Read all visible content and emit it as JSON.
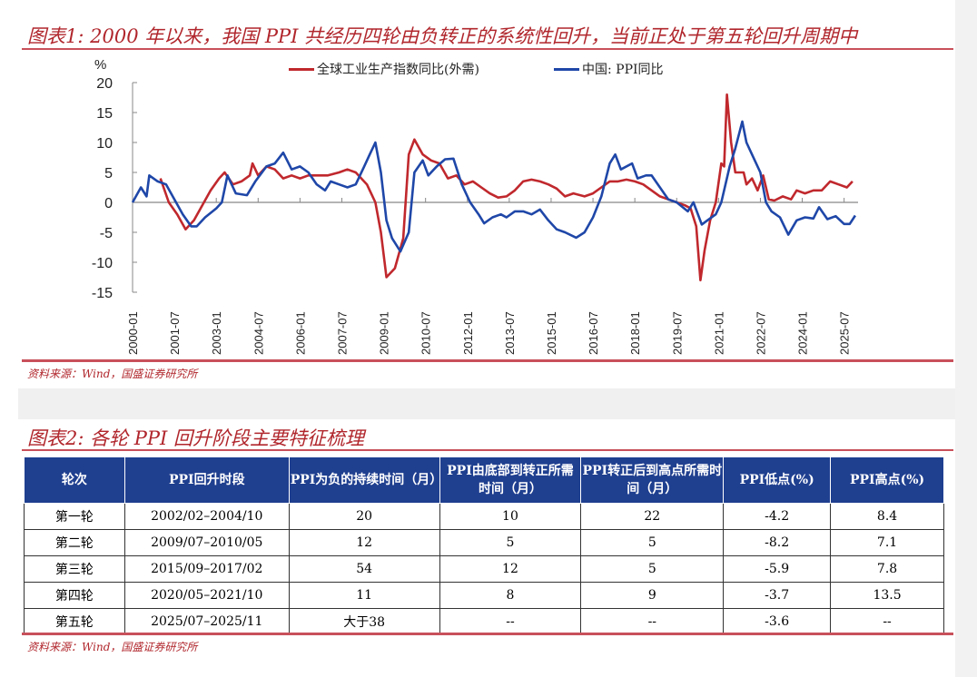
{
  "figure1": {
    "title": "图表1: 2000 年以来，我国 PPI 共经历四轮由负转正的系统性回升，当前正处于第五轮回升周期中",
    "source": "资料来源：Wind，国盛证券研究所"
  },
  "chart_data": {
    "type": "line",
    "ylabel": "%",
    "ylim": [
      -15,
      20
    ],
    "yticks": [
      "20",
      "15",
      "10",
      "5",
      "0",
      "-5",
      "-10",
      "-15"
    ],
    "ytick_values": [
      20,
      15,
      10,
      5,
      0,
      -5,
      -10,
      -15
    ],
    "xticks": [
      "2000-01",
      "2001-07",
      "2003-01",
      "2004-07",
      "2006-01",
      "2007-07",
      "2009-01",
      "2010-07",
      "2012-01",
      "2013-07",
      "2015-01",
      "2016-07",
      "2018-01",
      "2019-07",
      "2021-01",
      "2022-07",
      "2024-01",
      "2025-07"
    ],
    "xrange": [
      2000.0,
      2025.9
    ],
    "legend": "top-center",
    "series": [
      {
        "name": "全球工业生产指数同比(外需)",
        "color": "#c0282d",
        "x": [
          2001.0,
          2001.3,
          2001.6,
          2001.9,
          2002.2,
          2002.5,
          2002.8,
          2003.1,
          2003.3,
          2003.6,
          2003.9,
          2004.2,
          2004.3,
          2004.5,
          2004.8,
          2005.1,
          2005.4,
          2005.7,
          2006.0,
          2006.3,
          2006.6,
          2007.0,
          2007.4,
          2007.7,
          2008.0,
          2008.4,
          2008.7,
          2008.9,
          2009.1,
          2009.4,
          2009.7,
          2009.9,
          2010.1,
          2010.4,
          2010.7,
          2011.0,
          2011.3,
          2011.6,
          2011.9,
          2012.2,
          2012.5,
          2012.8,
          2013.1,
          2013.4,
          2013.7,
          2014.0,
          2014.3,
          2014.6,
          2014.9,
          2015.2,
          2015.5,
          2015.8,
          2016.2,
          2016.5,
          2016.8,
          2017.1,
          2017.4,
          2017.7,
          2018.0,
          2018.3,
          2018.6,
          2018.9,
          2019.2,
          2019.5,
          2019.8,
          2020.0,
          2020.2,
          2020.35,
          2020.5,
          2020.7,
          2020.9,
          2021.1,
          2021.2,
          2021.3,
          2021.45,
          2021.6,
          2021.9,
          2022.0,
          2022.2,
          2022.4,
          2022.6,
          2022.8,
          2023.0,
          2023.3,
          2023.6,
          2023.8,
          2024.1,
          2024.4,
          2024.7,
          2025.0,
          2025.3,
          2025.6,
          2025.8
        ],
        "y": [
          4,
          0,
          -2,
          -4.5,
          -3,
          -0.5,
          2,
          4,
          5,
          3,
          3.5,
          4.5,
          6.5,
          4.5,
          6,
          5.5,
          4,
          4.5,
          4,
          4.5,
          4.5,
          4.5,
          5,
          5.5,
          5,
          3,
          0,
          -5,
          -12.5,
          -11,
          -6,
          8,
          10.5,
          8,
          7,
          6.5,
          4,
          4.5,
          3,
          3.5,
          2.5,
          1.5,
          0.8,
          1,
          2,
          3.5,
          3.8,
          3.5,
          3,
          2.3,
          1,
          1.5,
          1,
          1.5,
          2.5,
          3.5,
          3.5,
          3.8,
          3.5,
          3,
          2,
          1,
          0.5,
          0,
          -0.5,
          -1,
          -4,
          -13,
          -8,
          -3,
          0,
          6.5,
          6,
          18,
          10,
          5,
          5,
          3,
          4,
          2,
          4.5,
          0.5,
          0.3,
          1,
          0.5,
          2,
          1.5,
          2,
          2,
          3.5,
          3,
          2.5,
          3.5
        ]
      },
      {
        "name": "中国: PPI同比",
        "color": "#1f47a8",
        "x": [
          2000.0,
          2000.3,
          2000.5,
          2000.6,
          2000.9,
          2001.2,
          2001.5,
          2001.8,
          2002.1,
          2002.3,
          2002.6,
          2003.0,
          2003.2,
          2003.4,
          2003.7,
          2004.1,
          2004.4,
          2004.8,
          2005.1,
          2005.4,
          2005.7,
          2006.0,
          2006.3,
          2006.6,
          2006.9,
          2007.1,
          2007.4,
          2007.7,
          2008.0,
          2008.3,
          2008.5,
          2008.7,
          2008.9,
          2009.1,
          2009.3,
          2009.6,
          2009.9,
          2010.1,
          2010.4,
          2010.6,
          2010.9,
          2011.2,
          2011.5,
          2011.8,
          2012.1,
          2012.4,
          2012.6,
          2012.9,
          2013.2,
          2013.4,
          2013.7,
          2014.0,
          2014.3,
          2014.6,
          2014.9,
          2015.2,
          2015.5,
          2015.9,
          2016.2,
          2016.5,
          2016.8,
          2017.1,
          2017.3,
          2017.5,
          2017.9,
          2018.1,
          2018.4,
          2018.6,
          2018.9,
          2019.2,
          2019.5,
          2019.9,
          2020.1,
          2020.4,
          2020.6,
          2020.9,
          2021.1,
          2021.4,
          2021.6,
          2021.85,
          2022.0,
          2022.2,
          2022.5,
          2022.7,
          2022.9,
          2023.2,
          2023.5,
          2023.8,
          2024.1,
          2024.4,
          2024.6,
          2024.9,
          2025.2,
          2025.5,
          2025.7,
          2025.9
        ],
        "y": [
          0,
          2.5,
          1,
          4.5,
          3.5,
          3,
          0.5,
          -2,
          -4,
          -4,
          -2.5,
          -1,
          0,
          4.5,
          1.5,
          1.2,
          3.5,
          6,
          6.5,
          8.3,
          5.5,
          6,
          5,
          3,
          2,
          3.5,
          3,
          2.5,
          3,
          6,
          8,
          10,
          5,
          -3,
          -6,
          -8.2,
          -5,
          5,
          7,
          4.5,
          6,
          7.2,
          7.3,
          3,
          0,
          -2,
          -3.5,
          -2.5,
          -2,
          -2.5,
          -1.5,
          -1.5,
          -2,
          -1.2,
          -3,
          -4.5,
          -5,
          -5.9,
          -5,
          -2.5,
          1,
          6.5,
          8,
          5.5,
          6.5,
          4,
          4.5,
          4.5,
          2.5,
          0.5,
          0,
          -1.5,
          0,
          -3.7,
          -3,
          -2,
          0,
          6,
          9,
          13.5,
          10,
          8,
          5,
          0,
          -1.5,
          -2.5,
          -5.4,
          -3,
          -2.5,
          -2.7,
          -0.8,
          -2.8,
          -2.3,
          -3.6,
          -3.6,
          -2.2
        ]
      }
    ]
  },
  "figure2": {
    "title": "图表2: 各轮 PPI 回升阶段主要特征梳理",
    "source": "资料来源：Wind，国盛证券研究所",
    "headers": [
      "轮次",
      "PPI回升时段",
      "PPI为负的持续时间（月）",
      "PPI由底部到转正所需时间（月）",
      "PPI转正后到高点所需时间（月）",
      "PPI低点(%)",
      "PPI高点(%)"
    ],
    "rows": [
      [
        "第一轮",
        "2002/02–2004/10",
        "20",
        "10",
        "22",
        "-4.2",
        "8.4"
      ],
      [
        "第二轮",
        "2009/07–2010/05",
        "12",
        "5",
        "5",
        "-8.2",
        "7.1"
      ],
      [
        "第三轮",
        "2015/09–2017/02",
        "54",
        "12",
        "5",
        "-5.9",
        "7.8"
      ],
      [
        "第四轮",
        "2020/05–2021/10",
        "11",
        "8",
        "9",
        "-3.7",
        "13.5"
      ],
      [
        "第五轮",
        "2025/07–2025/11",
        "大于38",
        "--",
        "--",
        "-3.6",
        "--"
      ]
    ]
  }
}
